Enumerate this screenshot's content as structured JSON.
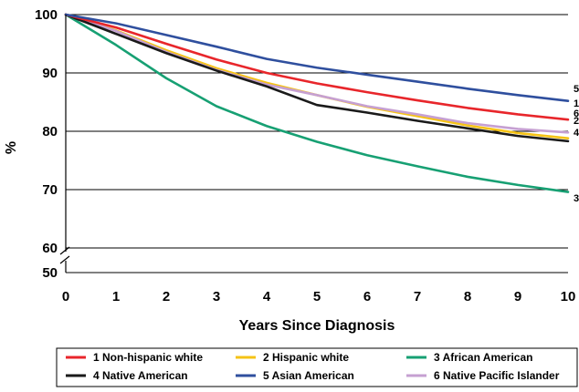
{
  "chart_data": {
    "type": "line",
    "title": "",
    "xlabel": "Years Since Diagnosis",
    "ylabel": "%",
    "xlim": [
      0,
      10
    ],
    "ylim": [
      50,
      100
    ],
    "x": [
      0,
      1,
      2,
      3,
      4,
      5,
      6,
      7,
      8,
      9,
      10
    ],
    "x_ticks": [
      "0",
      "1",
      "2",
      "3",
      "4",
      "5",
      "6",
      "7",
      "8",
      "9",
      "10"
    ],
    "y_ticks": [
      "50",
      "60",
      "70",
      "80",
      "90",
      "100"
    ],
    "grid": "horizontal",
    "axis_break": "between 50 and 60",
    "legend_position": "bottom",
    "series": [
      {
        "name": "1 Non-hispanic white",
        "end_label": "1",
        "color": "#e8262b",
        "values": [
          100,
          97.8,
          95.0,
          92.3,
          90.0,
          88.2,
          86.7,
          85.3,
          84.0,
          82.9,
          82.0
        ]
      },
      {
        "name": "2 Hispanic white",
        "end_label": "2",
        "color": "#f5c316",
        "values": [
          100,
          97.3,
          93.9,
          90.8,
          88.3,
          86.2,
          84.2,
          82.6,
          81.0,
          79.7,
          78.8
        ]
      },
      {
        "name": "3 African American",
        "end_label": "3",
        "color": "#17a073",
        "values": [
          100,
          94.8,
          89.1,
          84.3,
          80.9,
          78.2,
          75.9,
          74.0,
          72.2,
          70.8,
          69.6
        ]
      },
      {
        "name": "4 Native American",
        "end_label": "4",
        "color": "#1a1a1a",
        "values": [
          100,
          96.7,
          93.4,
          90.4,
          87.7,
          84.5,
          83.2,
          81.8,
          80.5,
          79.2,
          78.3
        ]
      },
      {
        "name": "5 Asian American",
        "end_label": "5",
        "color": "#2f4f9e",
        "values": [
          100,
          98.5,
          96.5,
          94.5,
          92.4,
          90.9,
          89.7,
          88.5,
          87.3,
          86.2,
          85.2
        ]
      },
      {
        "name": "6 Native Pacific Islander",
        "end_label": "6",
        "color": "#c6a0d2",
        "values": [
          100,
          97.2,
          93.6,
          90.5,
          88.0,
          86.2,
          84.3,
          82.9,
          81.4,
          80.4,
          79.8
        ]
      }
    ]
  }
}
